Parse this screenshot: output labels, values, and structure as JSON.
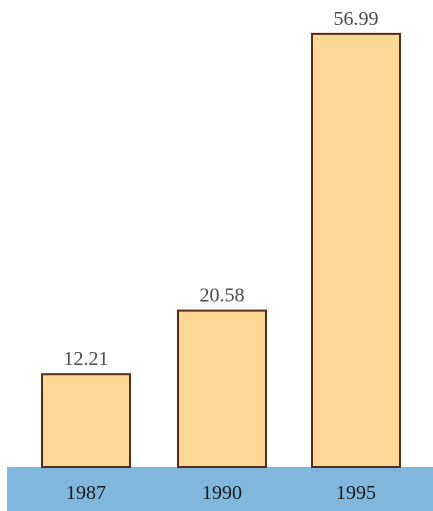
{
  "chart_data": {
    "type": "bar",
    "categories": [
      "1987",
      "1990",
      "1995"
    ],
    "values": [
      12.21,
      20.58,
      56.99
    ],
    "value_labels": [
      "12.21",
      "20.58",
      "56.99"
    ],
    "title": "",
    "xlabel": "",
    "ylabel": "",
    "ylim": [
      0,
      60
    ],
    "grid": false,
    "legend": "none",
    "colors": {
      "bar_fill": "#fbd896",
      "bar_stroke": "#5a2a1a",
      "base_band": "#7fb8dc"
    }
  }
}
